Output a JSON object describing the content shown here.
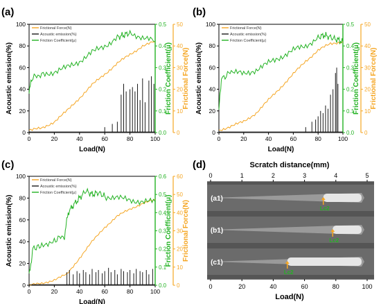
{
  "colors": {
    "friction_force": "#f5a623",
    "acoustic": "#1a1a1a",
    "coefficient": "#22b222",
    "left_axis": "#000000",
    "grey_text": "#333333"
  },
  "chart_data": [
    {
      "panel": "(a)",
      "type": "line",
      "xlabel": "Load(N)",
      "ylabel_left": "Acoustic emission(%)",
      "ylabel_right1": "Friction Coefficient(μ)",
      "ylabel_right2": "Frictional Force(N)",
      "xlim": [
        0,
        100
      ],
      "xticks": [
        "0",
        "20",
        "40",
        "60",
        "80",
        "100"
      ],
      "ylim_left": [
        0,
        100
      ],
      "yticks_left": [
        "0",
        "20",
        "40",
        "60",
        "80",
        "100"
      ],
      "ylim_right1": [
        0,
        0.5
      ],
      "yticks_right1": [
        "0.0",
        "0.1",
        "0.2",
        "0.3",
        "0.4",
        "0.5"
      ],
      "ylim_right2": [
        0,
        50
      ],
      "yticks_right2": [
        "0",
        "10",
        "20",
        "30",
        "40",
        "50"
      ],
      "legend": [
        "Frictional Force(N)",
        "Acoustic emission(%)",
        "Friction Coefficient(μ)"
      ],
      "legend_placement": "top-left",
      "series": [
        {
          "name": "Frictional Force(N)",
          "axis": "right2",
          "x": [
            0,
            10,
            20,
            30,
            40,
            50,
            60,
            70,
            80,
            90,
            100
          ],
          "y": [
            1,
            2,
            5,
            10,
            16,
            22,
            27,
            32,
            36,
            40,
            42
          ]
        },
        {
          "name": "Friction Coefficient(μ)",
          "axis": "right1",
          "x": [
            0,
            2,
            10,
            20,
            30,
            40,
            50,
            60,
            70,
            75,
            80,
            90,
            100
          ],
          "y": [
            0.18,
            0.25,
            0.27,
            0.28,
            0.3,
            0.33,
            0.37,
            0.4,
            0.44,
            0.45,
            0.46,
            0.44,
            0.42
          ]
        },
        {
          "name": "Acoustic emission(%)",
          "axis": "left",
          "x": [
            60,
            66,
            70,
            73,
            75,
            77,
            80,
            82,
            84,
            86,
            88,
            90,
            92,
            95,
            97,
            99
          ],
          "y": [
            5,
            8,
            10,
            35,
            45,
            38,
            40,
            42,
            38,
            45,
            30,
            50,
            28,
            48,
            52,
            45
          ]
        }
      ]
    },
    {
      "panel": "(b)",
      "type": "line",
      "xlabel": "Load(N)",
      "ylabel_left": "Acoustic emission(%)",
      "ylabel_right1": "Friction Coefficient(μ)",
      "ylabel_right2": "Frictional Force(N)",
      "xlim": [
        0,
        100
      ],
      "xticks": [
        "0",
        "20",
        "40",
        "60",
        "80",
        "100"
      ],
      "ylim_left": [
        0,
        100
      ],
      "yticks_left": [
        "0",
        "20",
        "40",
        "60",
        "80",
        "100"
      ],
      "ylim_right1": [
        0,
        0.5
      ],
      "yticks_right1": [
        "0.0",
        "0.1",
        "0.2",
        "0.3",
        "0.4",
        "0.5"
      ],
      "ylim_right2": [
        0,
        50
      ],
      "yticks_right2": [
        "0",
        "10",
        "20",
        "30",
        "40",
        "50"
      ],
      "legend": [
        "Frictional Force(N)",
        "Acoustic emission(%)",
        "Friction Coefficient(μ)"
      ],
      "legend_placement": "top-left",
      "series": [
        {
          "name": "Frictional Force(N)",
          "axis": "right2",
          "x": [
            0,
            10,
            20,
            30,
            40,
            50,
            60,
            70,
            80,
            90,
            100
          ],
          "y": [
            1,
            3,
            5,
            9,
            15,
            21,
            27,
            33,
            38,
            41,
            42
          ]
        },
        {
          "name": "Friction Coefficient(μ)",
          "axis": "right1",
          "x": [
            0,
            2,
            10,
            20,
            30,
            40,
            50,
            60,
            70,
            80,
            85,
            90,
            95,
            100
          ],
          "y": [
            0.1,
            0.25,
            0.28,
            0.27,
            0.29,
            0.32,
            0.35,
            0.38,
            0.4,
            0.44,
            0.45,
            0.44,
            0.43,
            0.42
          ]
        },
        {
          "name": "Acoustic emission(%)",
          "axis": "left",
          "x": [
            70,
            75,
            78,
            80,
            82,
            84,
            86,
            88,
            90,
            92,
            94,
            95,
            96
          ],
          "y": [
            5,
            10,
            12,
            15,
            20,
            18,
            25,
            22,
            35,
            40,
            55,
            60,
            45
          ]
        }
      ]
    },
    {
      "panel": "(c)",
      "type": "line",
      "xlabel": "Load(N)",
      "ylabel_left": "Acoustic emission(%)",
      "ylabel_right1": "Friction Coefficient(μ)",
      "ylabel_right2": "Frictional Force(N)",
      "xlim": [
        0,
        100
      ],
      "xticks": [
        "0",
        "20",
        "40",
        "60",
        "80",
        "100"
      ],
      "ylim_left": [
        0,
        100
      ],
      "yticks_left": [
        "0",
        "20",
        "40",
        "60",
        "80",
        "100"
      ],
      "ylim_right1": [
        0,
        0.6
      ],
      "yticks_right1": [
        "0.0",
        "0.1",
        "0.2",
        "0.3",
        "0.4",
        "0.5",
        "0.6"
      ],
      "ylim_right2": [
        0,
        60
      ],
      "yticks_right2": [
        "0",
        "10",
        "20",
        "30",
        "40",
        "50",
        "60"
      ],
      "legend": [
        "Frictional Force(N)",
        "Acoustic emission(%)",
        "Friction Coefficient(μ)"
      ],
      "legend_placement": "top-left",
      "series": [
        {
          "name": "Frictional Force(N)",
          "axis": "right2",
          "x": [
            0,
            10,
            20,
            30,
            40,
            50,
            60,
            70,
            80,
            90,
            100
          ],
          "y": [
            0,
            1,
            3,
            6,
            15,
            24,
            32,
            38,
            42,
            45,
            47
          ]
        },
        {
          "name": "Friction Coefficient(μ)",
          "axis": "right1",
          "x": [
            0,
            3,
            10,
            20,
            28,
            31,
            35,
            40,
            45,
            50,
            55,
            60,
            70,
            80,
            90,
            100
          ],
          "y": [
            0.05,
            0.2,
            0.22,
            0.25,
            0.27,
            0.4,
            0.44,
            0.48,
            0.52,
            0.5,
            0.51,
            0.49,
            0.48,
            0.47,
            0.46,
            0.46
          ]
        },
        {
          "name": "Acoustic emission(%)",
          "axis": "left",
          "x": [
            30,
            32,
            35,
            38,
            40,
            43,
            45,
            48,
            50,
            53,
            55,
            58,
            60,
            63,
            65,
            68,
            70,
            73,
            75,
            78,
            80,
            83,
            85,
            88,
            90,
            93,
            95,
            98
          ],
          "y": [
            12,
            14,
            10,
            13,
            11,
            14,
            12,
            10,
            15,
            12,
            14,
            11,
            13,
            16,
            12,
            14,
            10,
            15,
            13,
            12,
            14,
            11,
            15,
            13,
            12,
            14,
            10,
            15
          ]
        }
      ]
    }
  ],
  "panel_d": {
    "label": "(d)",
    "top_axis_label": "Scratch distance(mm)",
    "top_ticks": [
      "0",
      "1",
      "2",
      "3",
      "4",
      "5"
    ],
    "bottom_axis_label": "Load(N)",
    "bottom_ticks": [
      "0",
      "20",
      "40",
      "60",
      "80",
      "100"
    ],
    "strips": [
      {
        "label": "(a1)",
        "marker": "Lc2",
        "load": 72
      },
      {
        "label": "(b1)",
        "marker": "Lc2",
        "load": 78
      },
      {
        "label": "(c1)",
        "marker": "Lc2",
        "load": 49
      }
    ]
  }
}
